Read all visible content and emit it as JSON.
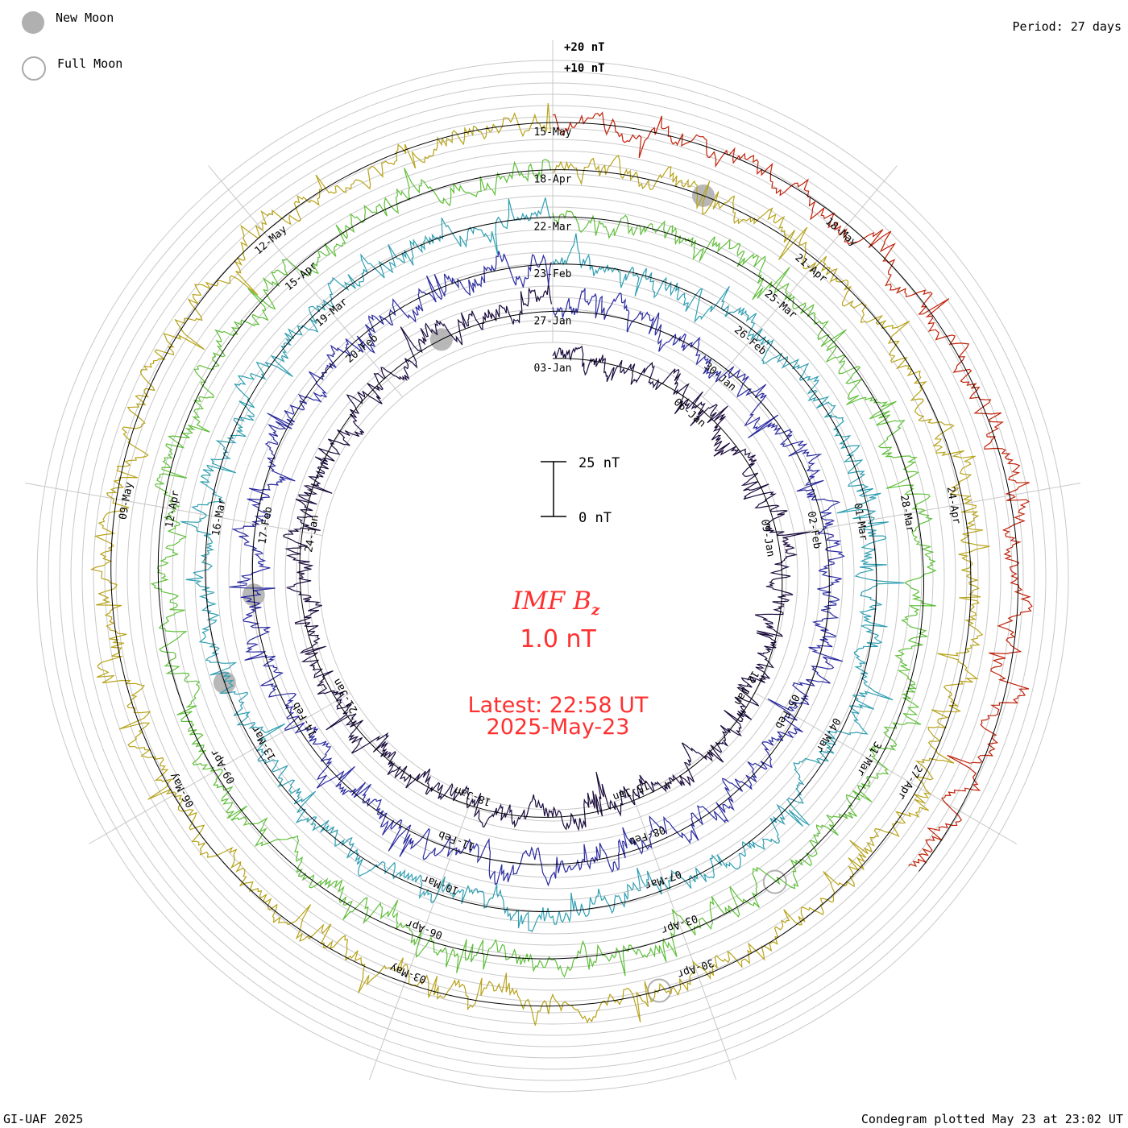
{
  "period_label": "Period: 27 days",
  "credit": "GI-UAF 2025",
  "plotted": "Condegram plotted May 23 at 23:02 UT",
  "legend": {
    "new_moon": "New Moon",
    "full_moon": "Full Moon",
    "new_moon_color": "#b0b0b0",
    "full_moon_color": "#ffffff"
  },
  "scale": {
    "ring_plus20": "+20 nT",
    "ring_plus10": "+10 nT",
    "bar_top": "25 nT",
    "bar_bottom": "0 nT"
  },
  "center": {
    "title_main": "IMF B",
    "title_sub": "z",
    "value": "1.0 nT",
    "latest": "Latest: 22:58 UT",
    "date": "2025-May-23",
    "color": "#ff3030"
  },
  "chart_data": {
    "type": "line",
    "title": "IMF Bz",
    "period_days": 27,
    "units": "nT",
    "rotations": [
      {
        "color": "#1a0b3c",
        "date_labels": [
          "03-Jan",
          "06-Jan",
          "09-Jan",
          "12-Jan",
          "15-Jan",
          "18-Jan",
          "21-Jan",
          "24-Jan"
        ]
      },
      {
        "color": "#2a2aa0",
        "date_labels": [
          "27-Jan",
          "30-Jan",
          "02-Feb",
          "05-Feb",
          "08-Feb",
          "11-Feb",
          "14-Feb",
          "17-Feb",
          "20-Feb"
        ]
      },
      {
        "color": "#2f9fb2",
        "date_labels": [
          "23-Feb",
          "26-Feb",
          "01-Mar",
          "04-Mar",
          "07-Mar",
          "10-Mar",
          "13-Mar",
          "16-Mar",
          "19-Mar"
        ]
      },
      {
        "color": "#5fbf3a",
        "date_labels": [
          "22-Mar",
          "25-Mar",
          "28-Mar",
          "31-Mar",
          "03-Apr",
          "06-Apr",
          "09-Apr",
          "12-Apr",
          "15-Apr"
        ]
      },
      {
        "color": "#b8a31a",
        "date_labels": [
          "18-Apr",
          "21-Apr",
          "24-Apr",
          "27-Apr",
          "30-Apr",
          "03-May",
          "06-May",
          "09-May",
          "12-May"
        ]
      },
      {
        "color": "#c0220a",
        "date_labels": [
          "15-May",
          "18-May"
        ]
      }
    ]
  }
}
